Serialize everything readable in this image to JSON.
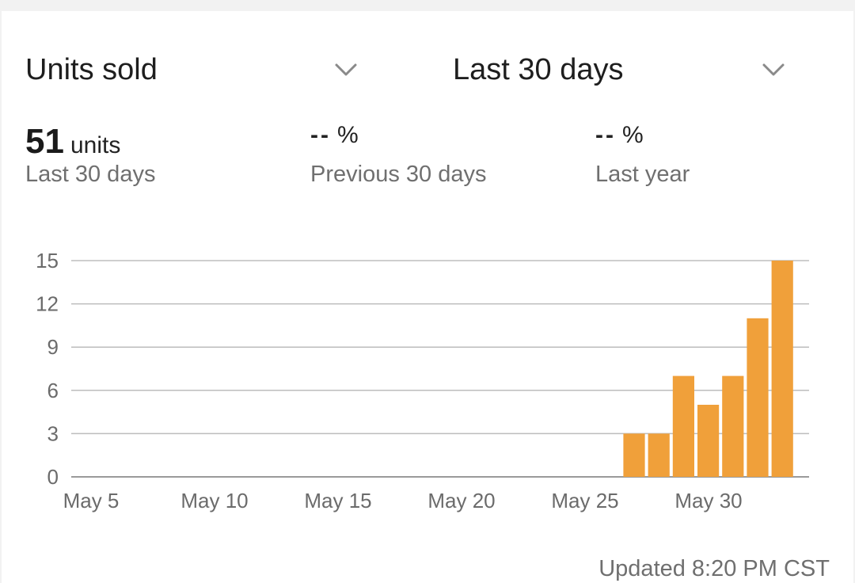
{
  "header": {
    "metric_label": "Units sold",
    "range_label": "Last 30 days",
    "metric_chevron_icon": "chevron-down-icon",
    "range_chevron_icon": "chevron-down-icon"
  },
  "stats": [
    {
      "value": "51",
      "unit": "units",
      "caption": "Last 30 days"
    },
    {
      "value": "--",
      "unit": "%",
      "caption": "Previous 30 days"
    },
    {
      "value": "--",
      "unit": "%",
      "caption": "Last year"
    }
  ],
  "chart_data": {
    "type": "bar",
    "x_tick_labels": [
      "May 5",
      "May 10",
      "May 15",
      "May 20",
      "May 25",
      "May 30"
    ],
    "y_ticks": [
      0,
      3,
      6,
      9,
      12,
      15
    ],
    "ylim": [
      0,
      15
    ],
    "categories": [
      "May 27",
      "May 28",
      "May 29",
      "May 30",
      "May 31",
      "Jun 1",
      "Jun 2"
    ],
    "values": [
      3,
      3,
      7,
      5,
      7,
      11,
      15
    ],
    "bar_color": "#f0a03a",
    "grid": true
  },
  "footer": {
    "updated": "Updated 8:20 PM CST"
  }
}
